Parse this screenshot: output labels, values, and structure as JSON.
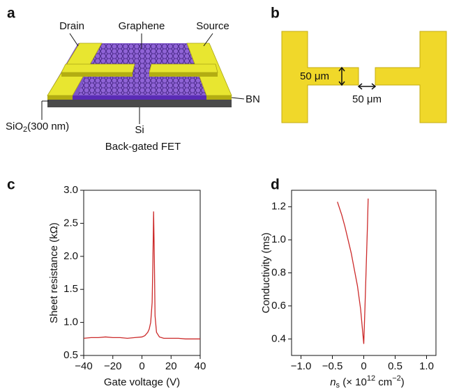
{
  "panel_labels": [
    "a",
    "b",
    "c",
    "d"
  ],
  "device": {
    "drain": "Drain",
    "graphene": "Graphene",
    "source": "Source",
    "bn": "BN",
    "sio2": "SiO",
    "sio2_sub": "2",
    "sio2_rest": "(300 nm)",
    "si": "Si",
    "caption": "Back-gated FET"
  },
  "dimensions": {
    "width_label": "50 μm",
    "gap_label": "50 μm"
  },
  "chart_data": [
    {
      "type": "line",
      "xlabel": "Gate voltage (V)",
      "ylabel": "Sheet resistance (kΩ)",
      "xlim": [
        -40,
        40
      ],
      "ylim": [
        0.5,
        3.0
      ],
      "xticks": [
        {
          "value": -40,
          "label": "−40"
        },
        {
          "value": -20,
          "label": "−20"
        },
        0,
        20,
        40
      ],
      "yticks": [
        0.5,
        {
          "value": 1,
          "label": "1.0"
        },
        1.5,
        {
          "value": 2,
          "label": "2.0"
        },
        2.5,
        {
          "value": 3,
          "label": "3.0"
        }
      ],
      "x": [
        -40,
        -35,
        -30,
        -25,
        -20,
        -15,
        -10,
        -5,
        0,
        2,
        4,
        5,
        6,
        7,
        7.5,
        8,
        8.5,
        9,
        10,
        12,
        15,
        20,
        25,
        30,
        35,
        40
      ],
      "values": [
        0.76,
        0.77,
        0.77,
        0.78,
        0.77,
        0.77,
        0.76,
        0.77,
        0.78,
        0.8,
        0.85,
        0.9,
        1.0,
        1.3,
        1.9,
        2.68,
        2.0,
        1.1,
        0.85,
        0.78,
        0.76,
        0.76,
        0.76,
        0.75,
        0.75,
        0.75
      ],
      "color": "#cc2a2a"
    },
    {
      "type": "line",
      "ylabel": "Conductivity (ms)",
      "xlabel_parts": [
        {
          "text": "n",
          "style": "italic"
        },
        {
          "text": "s",
          "style": "sub"
        },
        {
          "text": " (× 10"
        },
        {
          "text": "12",
          "style": "sup"
        },
        {
          "text": " cm"
        },
        {
          "text": "−2",
          "style": "sup"
        },
        {
          "text": ")"
        }
      ],
      "xlim": [
        -1.15,
        1.15
      ],
      "ylim": [
        0.3,
        1.3
      ],
      "xticks": [
        {
          "value": -1,
          "label": "−1.0"
        },
        {
          "value": -0.5,
          "label": "−0.5"
        },
        0,
        0.5,
        {
          "value": 1,
          "label": "1.0"
        }
      ],
      "yticks": [
        0.4,
        0.6,
        0.8,
        {
          "value": 1,
          "label": "1.0"
        },
        1.2
      ],
      "x": [
        -0.42,
        -0.35,
        -0.3,
        -0.2,
        -0.1,
        -0.05,
        0,
        0.02,
        0.04,
        0.06,
        0.07
      ],
      "values": [
        1.23,
        1.15,
        1.08,
        0.92,
        0.72,
        0.58,
        0.37,
        0.6,
        0.85,
        1.1,
        1.25
      ],
      "color": "#cc2a2a"
    }
  ]
}
